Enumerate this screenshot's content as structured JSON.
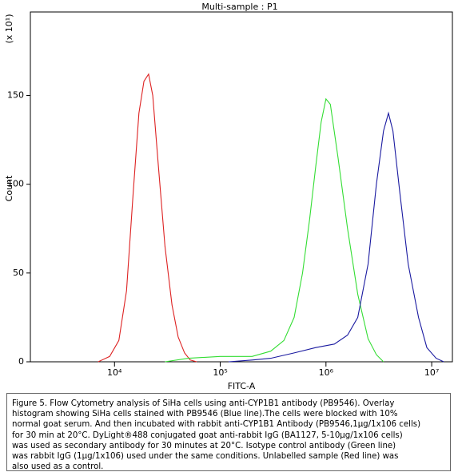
{
  "chart_data": {
    "type": "line",
    "title": "Multi-sample : P1",
    "ylabel": "Count",
    "xlabel": "FITC-A",
    "y_multiplier": "(x 10¹)",
    "xscale": "log",
    "xlim": [
      1600,
      15700000
    ],
    "ylim": [
      0,
      197
    ],
    "xticks": [
      {
        "value": 10000,
        "label": "10⁴"
      },
      {
        "value": 100000,
        "label": "10⁵"
      },
      {
        "value": 1000000,
        "label": "10⁶"
      },
      {
        "value": 10000000,
        "label": "10⁷"
      }
    ],
    "yticks": [
      0,
      50,
      100,
      150
    ],
    "series": [
      {
        "color": "#dd2222",
        "x": [
          7000,
          9000,
          11000,
          13000,
          15000,
          17000,
          19000,
          21000,
          23000,
          26000,
          30000,
          35000,
          40000,
          46000,
          52000,
          60000
        ],
        "values": [
          0,
          3,
          12,
          40,
          95,
          140,
          158,
          162,
          150,
          110,
          65,
          32,
          14,
          5,
          1,
          0
        ]
      },
      {
        "color": "#33dd33",
        "x": [
          30000,
          50000,
          100000,
          200000,
          300000,
          400000,
          500000,
          600000,
          700000,
          800000,
          900000,
          1000000,
          1100000,
          1300000,
          1600000,
          2000000,
          2500000,
          3000000,
          3500000
        ],
        "values": [
          0,
          2,
          3,
          3,
          6,
          12,
          25,
          50,
          80,
          110,
          135,
          148,
          145,
          115,
          75,
          38,
          13,
          4,
          0
        ]
      },
      {
        "color": "#1a1aa0",
        "x": [
          120000,
          200000,
          300000,
          500000,
          800000,
          1200000,
          1600000,
          2000000,
          2500000,
          3000000,
          3500000,
          3900000,
          4300000,
          5000000,
          6000000,
          7500000,
          9000000,
          11000000,
          13000000
        ],
        "values": [
          0,
          1,
          2,
          5,
          8,
          10,
          15,
          25,
          55,
          100,
          130,
          140,
          130,
          95,
          55,
          25,
          8,
          2,
          0
        ]
      }
    ]
  },
  "caption": [
    "Figure 5. Flow Cytometry analysis of SiHa cells using anti-CYP1B1 antibody (PB9546). Overlay",
    "histogram showing SiHa cells stained with PB9546 (Blue line).The cells were blocked with 10%",
    "normal goat serum. And then incubated with rabbit anti-CYP1B1 Antibody (PB9546,1μg/1x106 cells)",
    "for 30 min at 20°C. DyLight®488 conjugated goat anti-rabbit IgG (BA1127, 5-10μg/1x106 cells)",
    "was used as secondary antibody for 30 minutes at 20°C. Isotype control antibody (Green line)",
    "was rabbit IgG (1μg/1x106) used under the same conditions. Unlabelled sample (Red line) was",
    "also used as a control."
  ]
}
